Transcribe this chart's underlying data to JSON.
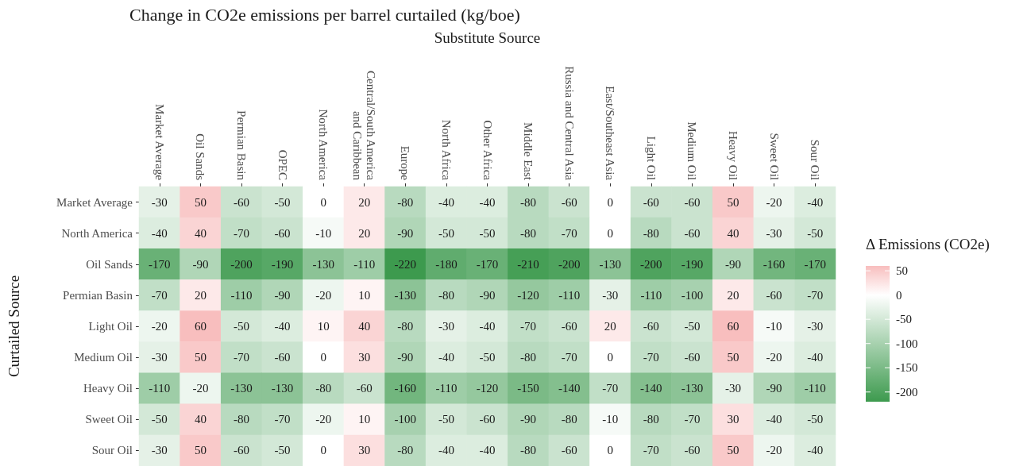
{
  "chart_data": {
    "type": "heatmap",
    "title": "Change in CO2e emissions per barrel curtailed (kg/boe)",
    "xlabel": "Substitute Source",
    "ylabel": "Curtailed Source",
    "clabel": "Δ Emissions (CO2e)",
    "categories": [
      "Market Average",
      "Oil Sands",
      "Permian Basin",
      "OPEC",
      "North America",
      "Central/South America\nand Caribbean",
      "Europe",
      "North Africa",
      "Other Africa",
      "Middle East",
      "Russia and Central Asia",
      "East/Southeast Asia",
      "Light Oil",
      "Medium Oil",
      "Heavy Oil",
      "Sweet Oil",
      "Sour Oil"
    ],
    "y_categories": [
      "Market Average",
      "North America",
      "Oil Sands",
      "Permian Basin",
      "Light Oil",
      "Medium Oil",
      "Heavy Oil",
      "Sweet Oil",
      "Sour Oil"
    ],
    "cells": [
      [
        -30,
        50,
        -60,
        -50,
        0,
        20,
        -80,
        -40,
        -40,
        -80,
        -60,
        0,
        -60,
        -60,
        50,
        -20,
        -40
      ],
      [
        -40,
        40,
        -70,
        -60,
        -10,
        20,
        -90,
        -50,
        -50,
        -80,
        -70,
        0,
        -80,
        -60,
        40,
        -30,
        -50
      ],
      [
        -170,
        -90,
        -200,
        -190,
        -130,
        -110,
        -220,
        -180,
        -170,
        -210,
        -200,
        -130,
        -200,
        -190,
        -90,
        -160,
        -170
      ],
      [
        -70,
        20,
        -110,
        -90,
        -20,
        10,
        -130,
        -80,
        -90,
        -120,
        -110,
        -30,
        -110,
        -100,
        20,
        -60,
        -70
      ],
      [
        -20,
        60,
        -50,
        -40,
        10,
        40,
        -80,
        -30,
        -40,
        -70,
        -60,
        20,
        -60,
        -50,
        60,
        -10,
        -30
      ],
      [
        -30,
        50,
        -70,
        -60,
        0,
        30,
        -90,
        -40,
        -50,
        -80,
        -70,
        0,
        -70,
        -60,
        50,
        -20,
        -40
      ],
      [
        -110,
        -20,
        -130,
        -130,
        -80,
        -60,
        -160,
        -110,
        -120,
        -150,
        -140,
        -70,
        -140,
        -130,
        -30,
        -90,
        -110
      ],
      [
        -50,
        40,
        -80,
        -70,
        -20,
        10,
        -100,
        -50,
        -60,
        -90,
        -80,
        -10,
        -80,
        -70,
        30,
        -40,
        -50
      ],
      [
        -30,
        50,
        -60,
        -50,
        0,
        30,
        -80,
        -40,
        -40,
        -80,
        -60,
        0,
        -70,
        -60,
        50,
        -20,
        -40
      ]
    ],
    "data_labels": true,
    "clim": [
      -220,
      60
    ],
    "cticks": [
      50,
      0,
      -50,
      -100,
      -150,
      -200
    ]
  }
}
